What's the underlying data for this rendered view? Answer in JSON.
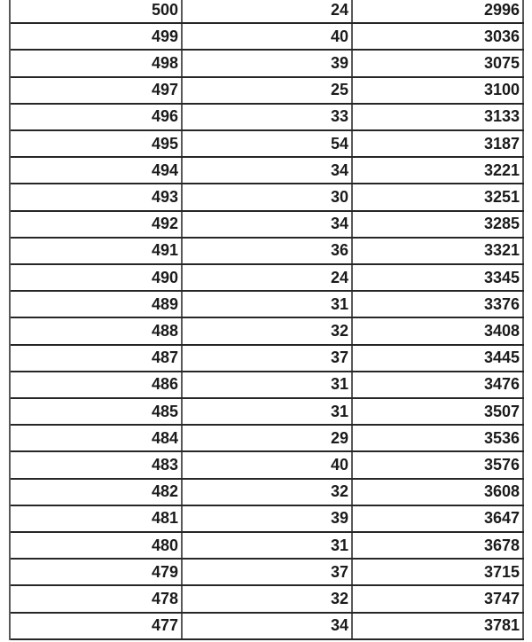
{
  "colors": {
    "background": "#ffffff",
    "row_border": "#262626",
    "column_border": "#595959",
    "text": "#1b1b1b"
  },
  "table": {
    "rows": [
      [
        "500",
        "24",
        "2996"
      ],
      [
        "499",
        "40",
        "3036"
      ],
      [
        "498",
        "39",
        "3075"
      ],
      [
        "497",
        "25",
        "3100"
      ],
      [
        "496",
        "33",
        "3133"
      ],
      [
        "495",
        "54",
        "3187"
      ],
      [
        "494",
        "34",
        "3221"
      ],
      [
        "493",
        "30",
        "3251"
      ],
      [
        "492",
        "34",
        "3285"
      ],
      [
        "491",
        "36",
        "3321"
      ],
      [
        "490",
        "24",
        "3345"
      ],
      [
        "489",
        "31",
        "3376"
      ],
      [
        "488",
        "32",
        "3408"
      ],
      [
        "487",
        "37",
        "3445"
      ],
      [
        "486",
        "31",
        "3476"
      ],
      [
        "485",
        "31",
        "3507"
      ],
      [
        "484",
        "29",
        "3536"
      ],
      [
        "483",
        "40",
        "3576"
      ],
      [
        "482",
        "32",
        "3608"
      ],
      [
        "481",
        "39",
        "3647"
      ],
      [
        "480",
        "31",
        "3678"
      ],
      [
        "479",
        "37",
        "3715"
      ],
      [
        "478",
        "32",
        "3747"
      ],
      [
        "477",
        "34",
        "3781"
      ]
    ]
  }
}
